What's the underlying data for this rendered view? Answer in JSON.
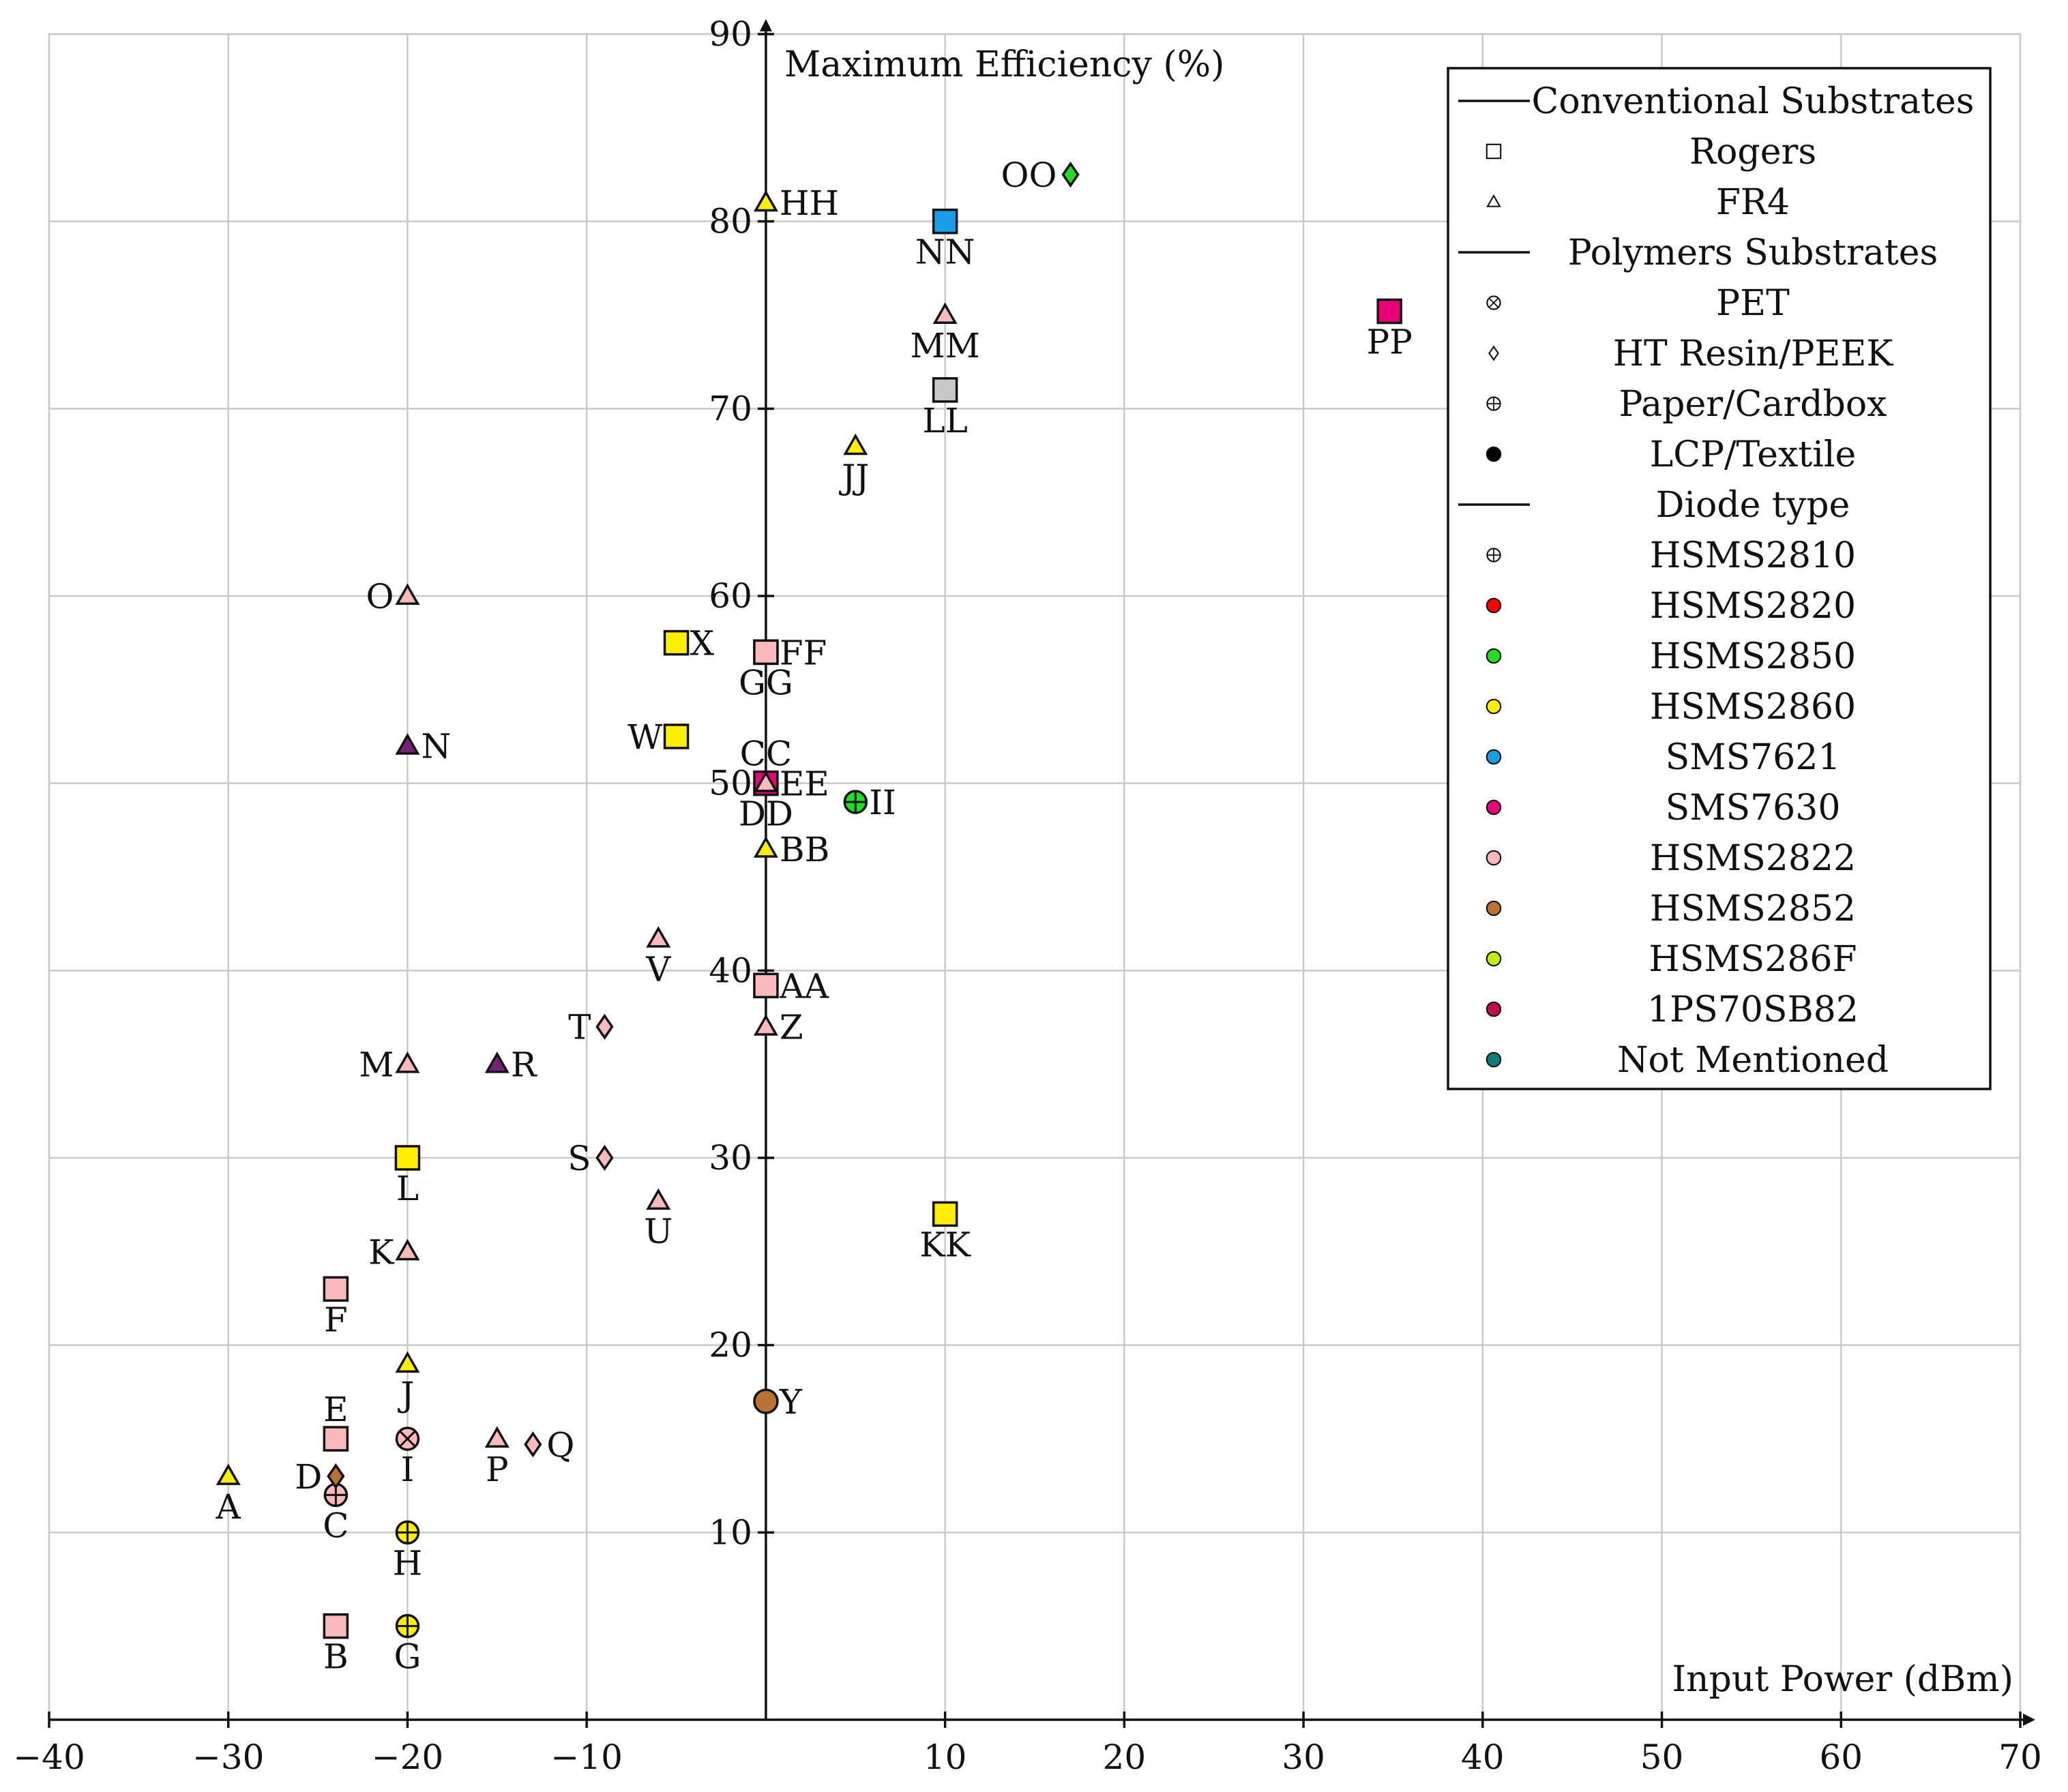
{
  "chart_data": {
    "type": "scatter",
    "title": "",
    "xlabel": "Input Power (dBm)",
    "ylabel": "Maximum Efficiency (%)",
    "xlim": [
      -40,
      70
    ],
    "ylim": [
      0,
      90
    ],
    "x_ticks": [
      "−40",
      "−30",
      "−20",
      "−10",
      "10",
      "20",
      "30",
      "40",
      "50",
      "60",
      "70"
    ],
    "x_tick_values": [
      -40,
      -30,
      -20,
      -10,
      10,
      20,
      30,
      40,
      50,
      60,
      70
    ],
    "y_ticks": [
      "10",
      "20",
      "30",
      "40",
      "50",
      "60",
      "70",
      "80",
      "90"
    ],
    "y_tick_values": [
      10,
      20,
      30,
      40,
      50,
      60,
      70,
      80,
      90
    ],
    "grid": true,
    "legend_position": "top-right",
    "legend": {
      "substrate_header_1": "Conventional Substrates",
      "substrates_conventional": [
        {
          "name": "Rogers",
          "shape": "square"
        },
        {
          "name": "FR4",
          "shape": "triangle"
        }
      ],
      "substrate_header_2": "Polymers Substrates",
      "substrates_polymer": [
        {
          "name": "PET",
          "shape": "otimes"
        },
        {
          "name": "HT Resin/PEEK",
          "shape": "diamond"
        },
        {
          "name": "Paper/Cardbox",
          "shape": "oplus"
        },
        {
          "name": "LCP/Textile",
          "shape": "dot"
        }
      ],
      "diode_header": "Diode type",
      "diodes": [
        {
          "name": "HSMS2810",
          "color": "#ffffff",
          "shape": "oplus"
        },
        {
          "name": "HSMS2820",
          "color": "#ff0000"
        },
        {
          "name": "HSMS2850",
          "color": "#22dd22"
        },
        {
          "name": "HSMS2860",
          "color": "#ffee00"
        },
        {
          "name": "SMS7621",
          "color": "#1a9ee8"
        },
        {
          "name": "SMS7630",
          "color": "#e8007a"
        },
        {
          "name": "HSMS2822",
          "color": "#f9b9bd"
        },
        {
          "name": "HSMS2852",
          "color": "#b87333"
        },
        {
          "name": "HSMS286F",
          "color": "#bff000"
        },
        {
          "name": "1PS70SB82",
          "color": "#c0104a"
        },
        {
          "name": "Not Mentioned",
          "color": "#117a7a"
        }
      ]
    },
    "points": [
      {
        "label": "A",
        "x": -30,
        "y": 13,
        "shape": "triangle",
        "color": "#ffee00",
        "label_pos": "below"
      },
      {
        "label": "B",
        "x": -24,
        "y": 5,
        "shape": "square",
        "color": "#f9b9bd",
        "label_pos": "below"
      },
      {
        "label": "C",
        "x": -24,
        "y": 12,
        "shape": "oplus",
        "color": "#f9b9bd",
        "label_pos": "below"
      },
      {
        "label": "D",
        "x": -24,
        "y": 13,
        "shape": "diamond",
        "color": "#b87333",
        "label_pos": "left"
      },
      {
        "label": "E",
        "x": -24,
        "y": 15,
        "shape": "square",
        "color": "#f9b9bd",
        "label_pos": "above"
      },
      {
        "label": "F",
        "x": -24,
        "y": 23,
        "shape": "square",
        "color": "#f9b9bd",
        "label_pos": "below"
      },
      {
        "label": "G",
        "x": -20,
        "y": 5,
        "shape": "oplus",
        "color": "#ffee00",
        "label_pos": "below"
      },
      {
        "label": "H",
        "x": -20,
        "y": 10,
        "shape": "oplus",
        "color": "#ffee00",
        "label_pos": "below"
      },
      {
        "label": "I",
        "x": -20,
        "y": 15,
        "shape": "otimes",
        "color": "#f9b9bd",
        "label_pos": "below"
      },
      {
        "label": "J",
        "x": -20,
        "y": 19,
        "shape": "triangle",
        "color": "#ffee00",
        "label_pos": "below"
      },
      {
        "label": "K",
        "x": -20,
        "y": 25,
        "shape": "triangle",
        "color": "#f9b9bd",
        "label_pos": "left"
      },
      {
        "label": "L",
        "x": -20,
        "y": 30,
        "shape": "square",
        "color": "#ffee00",
        "label_pos": "below"
      },
      {
        "label": "M",
        "x": -20,
        "y": 35,
        "shape": "triangle",
        "color": "#f9b9bd",
        "label_pos": "left"
      },
      {
        "label": "N",
        "x": -20,
        "y": 52,
        "shape": "triangle",
        "color": "#7a1f7a",
        "label_pos": "right"
      },
      {
        "label": "O",
        "x": -20,
        "y": 60,
        "shape": "triangle",
        "color": "#f9b9bd",
        "label_pos": "left"
      },
      {
        "label": "P",
        "x": -15,
        "y": 15,
        "shape": "triangle",
        "color": "#f9b9bd",
        "label_pos": "below"
      },
      {
        "label": "Q",
        "x": -13,
        "y": 14.7,
        "shape": "diamond",
        "color": "#f9b9bd",
        "label_pos": "right"
      },
      {
        "label": "R",
        "x": -15,
        "y": 35,
        "shape": "triangle",
        "color": "#7a1f7a",
        "label_pos": "right"
      },
      {
        "label": "S",
        "x": -9,
        "y": 30,
        "shape": "diamond",
        "color": "#f9b9bd",
        "label_pos": "left"
      },
      {
        "label": "T",
        "x": -9,
        "y": 37,
        "shape": "diamond",
        "color": "#f9b9bd",
        "label_pos": "left"
      },
      {
        "label": "U",
        "x": -6,
        "y": 27.7,
        "shape": "triangle",
        "color": "#f9b9bd",
        "label_pos": "below"
      },
      {
        "label": "V",
        "x": -6,
        "y": 41.7,
        "shape": "triangle",
        "color": "#f9b9bd",
        "label_pos": "below"
      },
      {
        "label": "W",
        "x": -5,
        "y": 52.5,
        "shape": "square",
        "color": "#ffee00",
        "label_pos": "left"
      },
      {
        "label": "X",
        "x": -5,
        "y": 57.5,
        "shape": "square",
        "color": "#ffee00",
        "label_pos": "right"
      },
      {
        "label": "Y",
        "x": 0,
        "y": 17,
        "shape": "dot",
        "color": "#b87333",
        "label_pos": "right"
      },
      {
        "label": "Z",
        "x": 0,
        "y": 37,
        "shape": "triangle",
        "color": "#f9b9bd",
        "label_pos": "right"
      },
      {
        "label": "AA",
        "x": 0,
        "y": 39.2,
        "shape": "square",
        "color": "#f9b9bd",
        "label_pos": "right"
      },
      {
        "label": "BB",
        "x": 0,
        "y": 46.5,
        "shape": "triangle",
        "color": "#ffee00",
        "label_pos": "right"
      },
      {
        "label": "CC",
        "x": 0,
        "y": 50,
        "shape": "triangle",
        "color": "#f9b9bd",
        "label_pos": "above"
      },
      {
        "label": "DD",
        "x": 0,
        "y": 50,
        "shape": "square",
        "color": "#e8007a",
        "label_pos": "below"
      },
      {
        "label": "EE",
        "x": 0,
        "y": 50,
        "shape": "triangle",
        "color": "#f9b9bd",
        "label_pos": "right"
      },
      {
        "label": "FF",
        "x": 0,
        "y": 57,
        "shape": "square",
        "color": "#f9b9bd",
        "label_pos": "right"
      },
      {
        "label": "GG",
        "x": 0,
        "y": 57,
        "shape": "square",
        "color": "#f9b9bd",
        "label_pos": "below"
      },
      {
        "label": "HH",
        "x": 0,
        "y": 81,
        "shape": "triangle",
        "color": "#ffee00",
        "label_pos": "right"
      },
      {
        "label": "II",
        "x": 5,
        "y": 49,
        "shape": "oplus",
        "color": "#22dd22",
        "label_pos": "right"
      },
      {
        "label": "JJ",
        "x": 5,
        "y": 68,
        "shape": "triangle",
        "color": "#ffee00",
        "label_pos": "below"
      },
      {
        "label": "KK",
        "x": 10,
        "y": 27,
        "shape": "square",
        "color": "#ffee00",
        "label_pos": "below"
      },
      {
        "label": "LL",
        "x": 10,
        "y": 71,
        "shape": "square",
        "color": "#c8c8c8",
        "label_pos": "below"
      },
      {
        "label": "MM",
        "x": 10,
        "y": 75,
        "shape": "triangle",
        "color": "#f9b9bd",
        "label_pos": "below"
      },
      {
        "label": "NN",
        "x": 10,
        "y": 80,
        "shape": "square",
        "color": "#1a9ee8",
        "label_pos": "below"
      },
      {
        "label": "OO",
        "x": 17,
        "y": 82.5,
        "shape": "diamond",
        "color": "#22dd22",
        "label_pos": "left"
      },
      {
        "label": "PP",
        "x": 34.8,
        "y": 75.2,
        "shape": "square",
        "color": "#e8007a",
        "label_pos": "below"
      }
    ]
  }
}
